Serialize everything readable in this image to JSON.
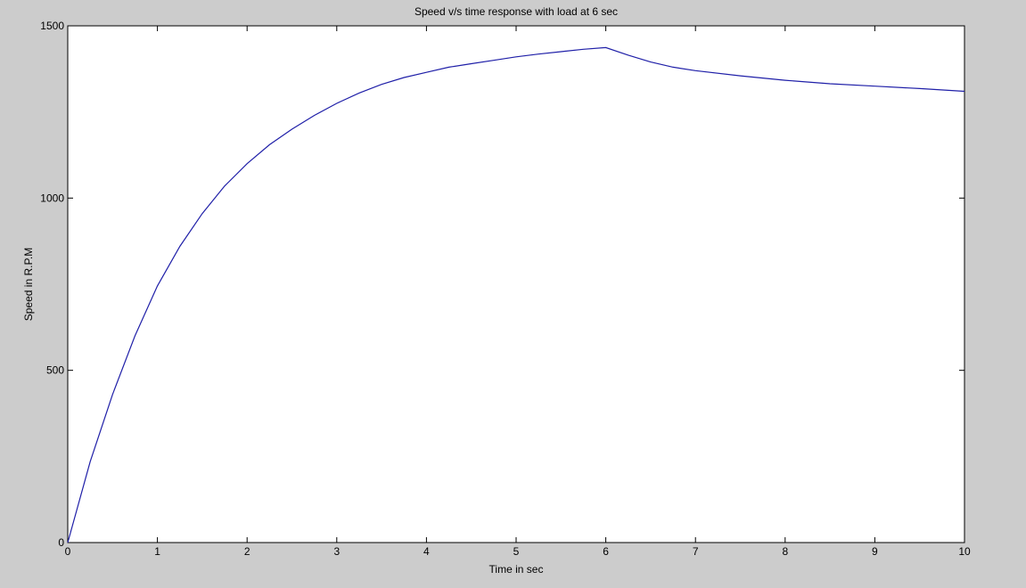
{
  "colors": {
    "figure_background": "#cccccc",
    "axes_background": "#ffffff",
    "axes_frame": "#000000",
    "line": "#1f1fa8"
  },
  "chart_data": {
    "type": "line",
    "title": "Speed v/s time response with load at 6 sec",
    "xlabel": "Time in sec",
    "ylabel": "Speed in R.P.M",
    "xlim": [
      0,
      10
    ],
    "ylim": [
      0,
      1500
    ],
    "xticks": [
      0,
      1,
      2,
      3,
      4,
      5,
      6,
      7,
      8,
      9,
      10
    ],
    "yticks": [
      0,
      500,
      1000,
      1500
    ],
    "grid": false,
    "legend": "none",
    "series": [
      {
        "x": [
          0,
          0.25,
          0.5,
          0.75,
          1,
          1.25,
          1.5,
          1.75,
          2,
          2.25,
          2.5,
          2.75,
          3,
          3.25,
          3.5,
          3.75,
          4,
          4.25,
          4.5,
          4.75,
          5,
          5.25,
          5.5,
          5.75,
          6,
          6.25,
          6.5,
          6.75,
          7,
          7.5,
          8,
          8.5,
          9,
          9.5,
          10
        ],
        "y": [
          0,
          235,
          430,
          600,
          745,
          860,
          955,
          1035,
          1100,
          1155,
          1200,
          1240,
          1275,
          1305,
          1330,
          1350,
          1365,
          1380,
          1390,
          1400,
          1410,
          1418,
          1425,
          1432,
          1437,
          1415,
          1395,
          1380,
          1370,
          1355,
          1342,
          1332,
          1325,
          1318,
          1310
        ]
      }
    ]
  }
}
